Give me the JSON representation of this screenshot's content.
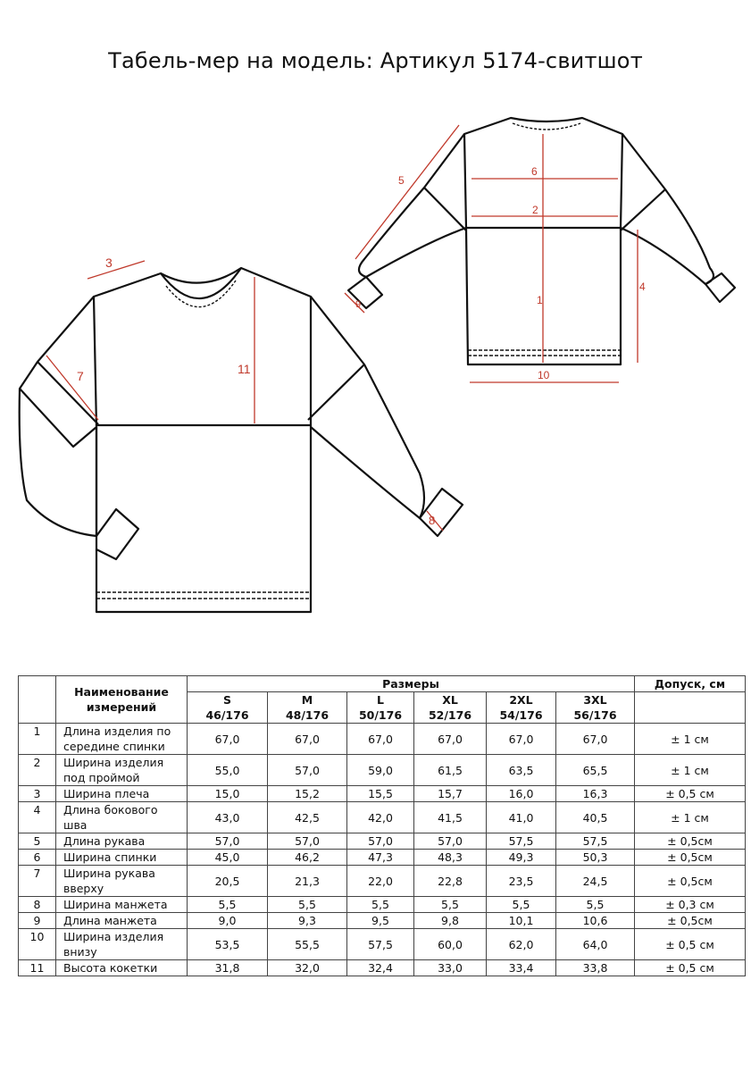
{
  "title": "Табель-мер на модель: Артикул 5174-свитшот",
  "diagram_labels": {
    "front": [
      "3",
      "7",
      "11",
      "8"
    ],
    "back": [
      "5",
      "6",
      "2",
      "1",
      "4",
      "9",
      "10"
    ]
  },
  "colors": {
    "measure_line": "#c0392b",
    "outline": "#111111"
  },
  "table": {
    "name_header": "Наименование измерений",
    "sizes_header": "Размеры",
    "tolerance_header": "Допуск, см",
    "sizes": [
      {
        "letter": "S",
        "code": "46/176"
      },
      {
        "letter": "M",
        "code": "48/176"
      },
      {
        "letter": "L",
        "code": "50/176"
      },
      {
        "letter": "XL",
        "code": "52/176"
      },
      {
        "letter": "2XL",
        "code": "54/176"
      },
      {
        "letter": "3XL",
        "code": "56/176"
      }
    ],
    "rows": [
      {
        "n": "1",
        "name": "Длина изделия по середине спинки",
        "values": [
          "67,0",
          "67,0",
          "67,0",
          "67,0",
          "67,0",
          "67,0"
        ],
        "tol": "± 1 см",
        "tall": true
      },
      {
        "n": "2",
        "name": "Ширина изделия под проймой",
        "values": [
          "55,0",
          "57,0",
          "59,0",
          "61,5",
          "63,5",
          "65,5"
        ],
        "tol": "± 1 см",
        "tall": true
      },
      {
        "n": "3",
        "name": "Ширина плеча",
        "values": [
          "15,0",
          "15,2",
          "15,5",
          "15,7",
          "16,0",
          "16,3"
        ],
        "tol": "± 0,5 см"
      },
      {
        "n": "4",
        "name": "Длина бокового шва",
        "values": [
          "43,0",
          "42,5",
          "42,0",
          "41,5",
          "41,0",
          "40,5"
        ],
        "tol": "± 1 см"
      },
      {
        "n": "5",
        "name": "Длина рукава",
        "values": [
          "57,0",
          "57,0",
          "57,0",
          "57,0",
          "57,5",
          "57,5"
        ],
        "tol": "± 0,5см"
      },
      {
        "n": "6",
        "name": "Ширина спинки",
        "values": [
          "45,0",
          "46,2",
          "47,3",
          "48,3",
          "49,3",
          "50,3"
        ],
        "tol": "± 0,5см"
      },
      {
        "n": "7",
        "name": "Ширина рукава вверху",
        "values": [
          "20,5",
          "21,3",
          "22,0",
          "22,8",
          "23,5",
          "24,5"
        ],
        "tol": "± 0,5см",
        "tall": true
      },
      {
        "n": "8",
        "name": "Ширина манжета",
        "values": [
          "5,5",
          "5,5",
          "5,5",
          "5,5",
          "5,5",
          "5,5"
        ],
        "tol": "± 0,3 см"
      },
      {
        "n": "9",
        "name": "Длина манжета",
        "values": [
          "9,0",
          "9,3",
          "9,5",
          "9,8",
          "10,1",
          "10,6"
        ],
        "tol": "± 0,5см"
      },
      {
        "n": "10",
        "name": "Ширина изделия внизу",
        "values": [
          "53,5",
          "55,5",
          "57,5",
          "60,0",
          "62,0",
          "64,0"
        ],
        "tol": "± 0,5 см",
        "tall": true
      },
      {
        "n": "11",
        "name": "Высота кокетки",
        "values": [
          "31,8",
          "32,0",
          "32,4",
          "33,0",
          "33,4",
          "33,8"
        ],
        "tol": "± 0,5 см"
      }
    ]
  }
}
